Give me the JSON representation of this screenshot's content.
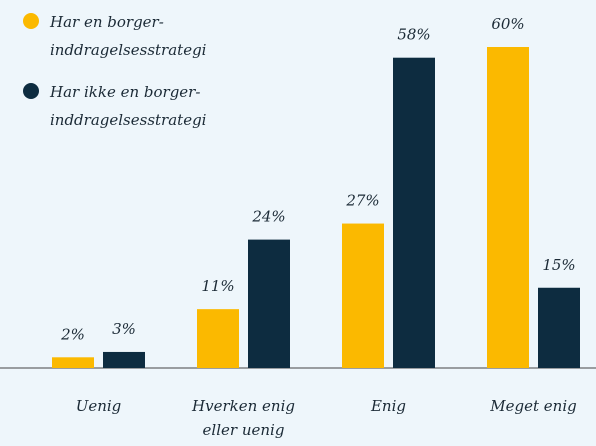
{
  "chart_data": {
    "type": "bar",
    "categories": [
      "Uenig",
      "Hverken enig eller uenig",
      "Enig",
      "Meget enig"
    ],
    "series": [
      {
        "name": "Har en borger-inddragelsesstrategi",
        "color": "#fbb900",
        "values": [
          2,
          11,
          27,
          60
        ],
        "value_labels": [
          "2%",
          "11%",
          "27%",
          "60%"
        ]
      },
      {
        "name": "Har ikke en borger-inddragelsesstrategi",
        "color": "#0d2c40",
        "values": [
          3,
          24,
          58,
          15
        ],
        "value_labels": [
          "3%",
          "24%",
          "58%",
          "15%"
        ]
      }
    ],
    "legend": "top-left"
  }
}
